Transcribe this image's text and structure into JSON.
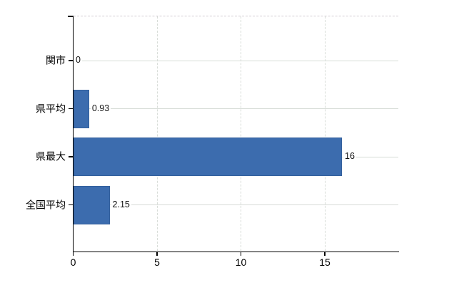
{
  "chart_data": {
    "type": "bar",
    "orientation": "horizontal",
    "categories": [
      "関市",
      "県平均",
      "県最大",
      "全国平均"
    ],
    "values": [
      0,
      0.93,
      16,
      2.15
    ],
    "value_labels": [
      "0",
      "0.93",
      "16",
      "2.15"
    ],
    "x_ticks": [
      0,
      5,
      10,
      15
    ],
    "x_tick_labels": [
      "0",
      "5",
      "10",
      "15"
    ],
    "xlim": [
      0,
      19.4
    ],
    "grid": true,
    "legend": null,
    "bar_color": "#3c6cae",
    "bar_border_color": "#33609d",
    "gridline_color": "#d7dcd7",
    "axis_color": "#000000",
    "background_color": "#ffffff"
  }
}
